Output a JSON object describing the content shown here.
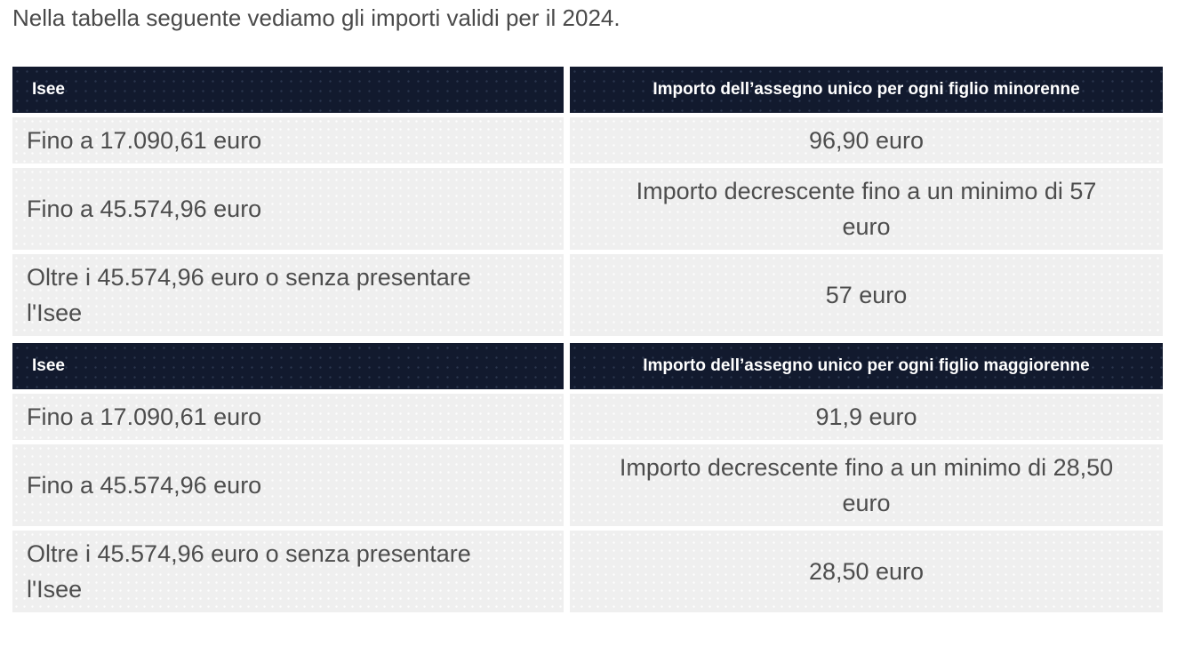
{
  "page": {
    "intro": "Nella tabella seguente vediamo gli importi validi per il 2024."
  },
  "colors": {
    "header_bg": "#121a2e",
    "header_text": "#ffffff",
    "cell_bg": "#efefef",
    "cell_text": "#4d4d4d",
    "intro_text": "#4a4a4a",
    "page_bg": "#ffffff"
  },
  "tables": [
    {
      "name": "assegno unico figlio minorenne",
      "headers": [
        "Isee",
        "Importo dell’assegno unico per ogni figlio minorenne"
      ],
      "rows": [
        [
          "Fino a 17.090,61 euro",
          "96,90 euro"
        ],
        [
          "Fino a 45.574,96 euro",
          "Importo decrescente fino a un minimo di 57 euro"
        ],
        [
          "Oltre i 45.574,96 euro o senza presentare l'Isee",
          "57 euro"
        ]
      ]
    },
    {
      "name": "assegno unico figlio maggiorenne",
      "headers": [
        "Isee",
        "Importo dell’assegno unico per ogni figlio maggiorenne"
      ],
      "rows": [
        [
          "Fino a 17.090,61 euro",
          "91,9 euro"
        ],
        [
          "Fino a 45.574,96 euro",
          "Importo decrescente fino a un minimo di 28,50 euro"
        ],
        [
          "Oltre i 45.574,96 euro o senza presentare l'Isee",
          "28,50 euro"
        ]
      ]
    }
  ]
}
